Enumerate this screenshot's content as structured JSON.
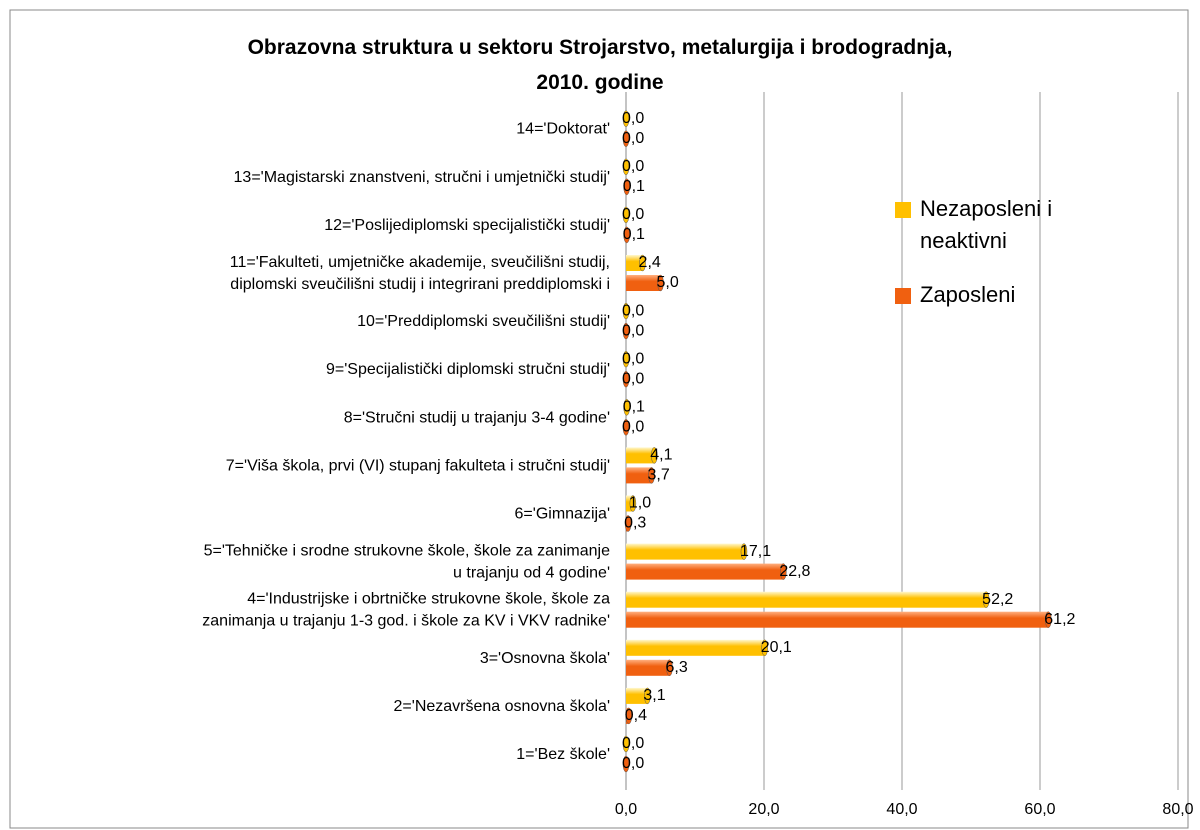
{
  "chart_data": {
    "type": "bar",
    "orientation": "horizontal",
    "title": "Obrazovna struktura u sektoru Strojarstvo, metalurgija i brodogradnja,\n2010. godine",
    "categories": [
      "1='Bez škole'",
      "2='Nezavršena osnovna škola'",
      "3='Osnovna škola'",
      "4='Industrijske i obrtničke strukovne škole, škole za\nzanimanja u trajanju 1-3 god. i škole za KV i VKV radnike'",
      "5='Tehničke i srodne strukovne škole, škole za zanimanje\nu trajanju od 4 godine'",
      "6='Gimnazija'",
      "7='Viša škola, prvi (VI) stupanj fakulteta i stručni studij'",
      "8='Stručni studij u trajanju 3-4 godine'",
      "9='Specijalistički diplomski stručni studij'",
      "10='Preddiplomski sveučilišni studij'",
      "11='Fakulteti, umjetničke akademije, sveučilišni studij,\ndiplomski sveučilišni studij i integrirani preddiplomski i",
      "12='Poslijediplomski specijalistički studij'",
      "13='Magistarski znanstveni, stručni i umjetnički studij'",
      "14='Doktorat'"
    ],
    "series": [
      {
        "name": "Nezaposleni i neaktivni",
        "color": "#ffc000",
        "values": [
          0.0,
          3.1,
          20.1,
          52.2,
          17.1,
          1.0,
          4.1,
          0.1,
          0.0,
          0.0,
          2.4,
          0.0,
          0.0,
          0.0
        ],
        "value_labels": [
          "0,0",
          "3,1",
          "20,1",
          "52,2",
          "17,1",
          "1,0",
          "4,1",
          "0,1",
          "0,0",
          "0,0",
          "2,4",
          "0,0",
          "0,0",
          "0,0"
        ]
      },
      {
        "name": "Zaposleni",
        "color": "#f06010",
        "values": [
          0.0,
          0.4,
          6.3,
          61.2,
          22.8,
          0.3,
          3.7,
          0.0,
          0.0,
          0.0,
          5.0,
          0.1,
          0.1,
          0.0
        ],
        "value_labels": [
          "0,0",
          "0,4",
          "6,3",
          "61,2",
          "22,8",
          "0,3",
          "3,7",
          "0,0",
          "0,0",
          "0,0",
          "5,0",
          "0,1",
          "0,1",
          "0,0"
        ]
      }
    ],
    "xlim": [
      0,
      80
    ],
    "xticks": [
      {
        "value": 0,
        "label": "0,0"
      },
      {
        "value": 20,
        "label": "20,0"
      },
      {
        "value": 40,
        "label": "40,0"
      },
      {
        "value": 60,
        "label": "60,0"
      },
      {
        "value": 80,
        "label": "80,0"
      }
    ],
    "grid": true,
    "legend": "right"
  }
}
